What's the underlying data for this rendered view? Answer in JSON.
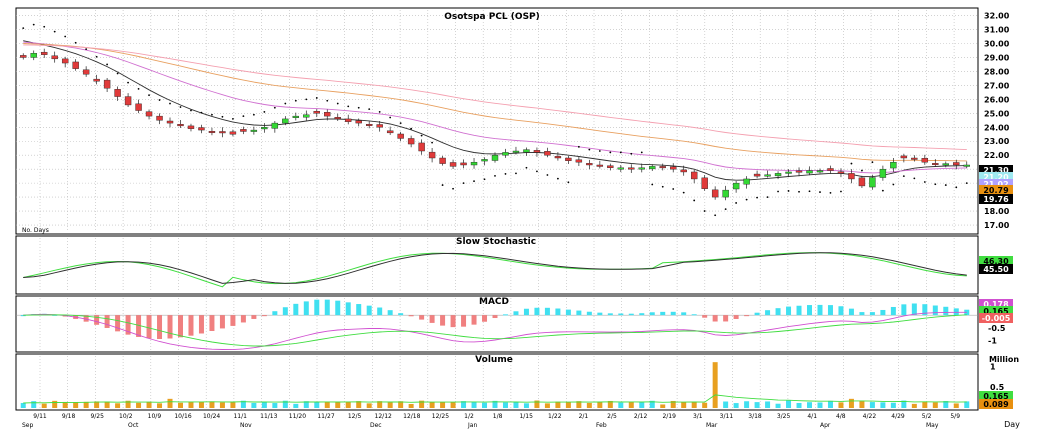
{
  "chart_data": [
    {
      "type": "candlestick",
      "title": "Osotspa PCL (OSP)",
      "subtitle": "",
      "corner_label": "No. Days",
      "ylim": [
        16.5,
        32.4
      ],
      "yticks": [
        "32.00",
        "31.00",
        "30.00",
        "29.00",
        "28.00",
        "27.00",
        "26.00",
        "25.00",
        "24.00",
        "23.00",
        "22.00",
        "21.00",
        "20.00",
        "19.00",
        "18.00",
        "17.00"
      ],
      "xtick_labels": [
        "9/11",
        "9/18",
        "9/25",
        "10/2",
        "10/9",
        "10/16",
        "10/24",
        "11/1",
        "11/13",
        "11/20",
        "11/27",
        "12/5",
        "12/12",
        "12/18",
        "12/25",
        "1/2",
        "1/8",
        "1/15",
        "1/22",
        "2/1",
        "2/5",
        "2/12",
        "2/19",
        "3/1",
        "3/11",
        "3/18",
        "3/25",
        "4/1",
        "4/8",
        "4/22",
        "4/29",
        "5/2",
        "5/9"
      ],
      "month_labels": [
        "Sep",
        "Oct",
        "Nov",
        "Dec",
        "Jan",
        "Feb",
        "Mar",
        "Apr",
        "May"
      ],
      "close_series": [
        29.0,
        29.3,
        29.2,
        28.9,
        28.6,
        28.2,
        27.8,
        27.3,
        26.8,
        26.2,
        25.6,
        25.2,
        24.8,
        24.5,
        24.3,
        24.1,
        23.9,
        23.8,
        23.7,
        23.6,
        23.5,
        23.7,
        23.8,
        24.0,
        24.3,
        24.6,
        24.8,
        24.9,
        25.0,
        24.8,
        24.6,
        24.4,
        24.3,
        24.2,
        24.0,
        23.6,
        23.2,
        22.8,
        22.3,
        21.8,
        21.4,
        21.2,
        21.3,
        21.5,
        21.7,
        22.0,
        22.2,
        22.3,
        22.4,
        22.2,
        22.0,
        21.8,
        21.6,
        21.5,
        21.3,
        21.2,
        21.1,
        21.1,
        21.0,
        21.1,
        21.2,
        21.1,
        21.0,
        20.8,
        20.3,
        19.6,
        19.0,
        19.5,
        20.0,
        20.3,
        20.5,
        20.6,
        20.7,
        20.8,
        20.8,
        20.9,
        20.9,
        20.9,
        20.7,
        20.3,
        19.8,
        20.4,
        21.0,
        21.5,
        21.8,
        21.7,
        21.5,
        21.4,
        21.4,
        21.3,
        21.3
      ],
      "overlays": [
        {
          "name": "EMA(10)",
          "color": "#303030"
        },
        {
          "name": "EMA(25)",
          "color": "#d070d0"
        },
        {
          "name": "EMA(50)",
          "color": "#e8a060"
        },
        {
          "name": "EMA(75)",
          "color": "#f4a0b0"
        }
      ],
      "last_value_tags": [
        {
          "label": "21.30",
          "value": 21.3,
          "bg": "#000000",
          "fg": "#ffffff"
        },
        {
          "label": "21.20",
          "value": 21.2,
          "bg": "#9fe9f0",
          "fg": "#ffffff"
        },
        {
          "label": "21.02",
          "value": 21.02,
          "bg": "#b0a0ff",
          "fg": "#ffffff"
        },
        {
          "label": "20.79",
          "value": 20.79,
          "bg": "#e89010",
          "fg": "#000000"
        },
        {
          "label": "19.76",
          "value": 19.76,
          "bg": "#000000",
          "fg": "#ffffff"
        }
      ]
    },
    {
      "type": "line",
      "title": "Slow Stochastic",
      "ylim": [
        0,
        100
      ],
      "last_value_tags": [
        {
          "label": "46.30",
          "value": 46.3,
          "bg": "#40dd40",
          "fg": "#000000"
        },
        {
          "label": "45.50",
          "value": 45.5,
          "bg": "#000000",
          "fg": "#ffffff"
        }
      ]
    },
    {
      "type": "line",
      "title": "MACD",
      "ylim": [
        -1.3,
        0.6
      ],
      "yticks": [
        "0.5",
        "-0.5",
        "-1"
      ],
      "last_value_tags": [
        {
          "label": "0.178",
          "value": 0.35,
          "bg": "#d050d0",
          "fg": "#ffffff"
        },
        {
          "label": "0.165",
          "value": 0.15,
          "bg": "#40dd40",
          "fg": "#000000"
        },
        {
          "label": "-0.005",
          "value": -0.05,
          "bg": "#f06060",
          "fg": "#ffffff"
        }
      ]
    },
    {
      "type": "bar",
      "title": "Volume",
      "unit_label": "Million",
      "x_unit_label": "Day",
      "ylim": [
        0,
        1.2
      ],
      "yticks": [
        "1",
        "0.5"
      ],
      "spike_value": 1.1,
      "last_value_tags": [
        {
          "label": "0.165",
          "value": 0.165,
          "bg": "#40dd40",
          "fg": "#000000"
        },
        {
          "label": "0.089",
          "value": 0.089,
          "bg": "#e89010",
          "fg": "#000000"
        }
      ]
    }
  ]
}
